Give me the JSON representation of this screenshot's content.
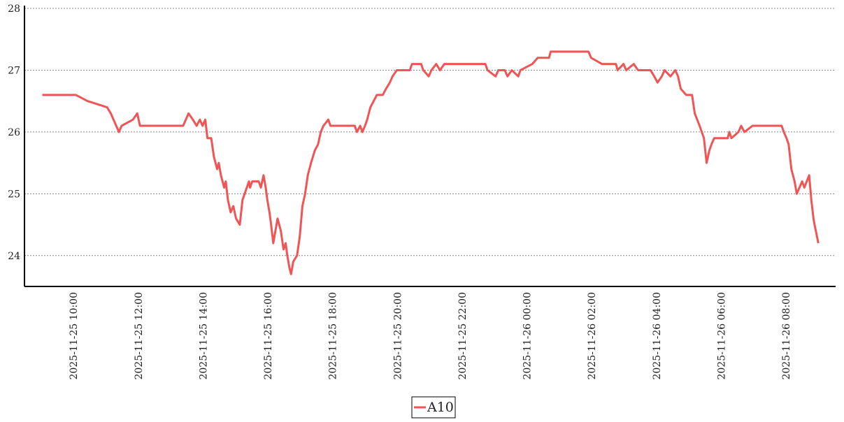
{
  "chart_data": {
    "type": "line",
    "x": [
      "2025-11-25 09:02",
      "2025-11-25 10:04",
      "2025-11-25 10:26",
      "2025-11-25 11:02",
      "2025-11-25 11:09",
      "2025-11-25 11:19",
      "2025-11-25 11:24",
      "2025-11-25 11:29",
      "2025-11-25 11:50",
      "2025-11-25 11:58",
      "2025-11-25 12:03",
      "2025-11-25 13:23",
      "2025-11-25 13:28",
      "2025-11-25 13:33",
      "2025-11-25 13:41",
      "2025-11-25 13:48",
      "2025-11-25 13:54",
      "2025-11-25 13:59",
      "2025-11-25 14:04",
      "2025-11-25 14:08",
      "2025-11-25 14:15",
      "2025-11-25 14:20",
      "2025-11-25 14:26",
      "2025-11-25 14:29",
      "2025-11-25 14:33",
      "2025-11-25 14:39",
      "2025-11-25 14:42",
      "2025-11-25 14:46",
      "2025-11-25 14:51",
      "2025-11-25 14:56",
      "2025-11-25 15:01",
      "2025-11-25 15:08",
      "2025-11-25 15:13",
      "2025-11-25 15:17",
      "2025-11-25 15:21",
      "2025-11-25 15:25",
      "2025-11-25 15:27",
      "2025-11-25 15:31",
      "2025-11-25 15:43",
      "2025-11-25 15:47",
      "2025-11-25 15:52",
      "2025-11-25 15:56",
      "2025-11-25 15:59",
      "2025-11-25 16:03",
      "2025-11-25 16:06",
      "2025-11-25 16:10",
      "2025-11-25 16:14",
      "2025-11-25 16:18",
      "2025-11-25 16:24",
      "2025-11-25 16:29",
      "2025-11-25 16:33",
      "2025-11-25 16:36",
      "2025-11-25 16:40",
      "2025-11-25 16:43",
      "2025-11-25 16:47",
      "2025-11-25 16:54",
      "2025-11-25 16:59",
      "2025-11-25 17:04",
      "2025-11-25 17:09",
      "2025-11-25 17:14",
      "2025-11-25 17:20",
      "2025-11-25 17:27",
      "2025-11-25 17:33",
      "2025-11-25 17:38",
      "2025-11-25 17:43",
      "2025-11-25 17:52",
      "2025-11-25 17:56",
      "2025-11-25 18:41",
      "2025-11-25 18:45",
      "2025-11-25 18:51",
      "2025-11-25 18:55",
      "2025-11-25 19:00",
      "2025-11-25 19:04",
      "2025-11-25 19:10",
      "2025-11-25 19:16",
      "2025-11-25 19:22",
      "2025-11-25 19:33",
      "2025-11-25 19:39",
      "2025-11-25 19:46",
      "2025-11-25 19:51",
      "2025-11-25 19:59",
      "2025-11-25 20:23",
      "2025-11-25 20:27",
      "2025-11-25 20:44",
      "2025-11-25 20:48",
      "2025-11-25 20:58",
      "2025-11-25 21:03",
      "2025-11-25 21:12",
      "2025-11-25 21:19",
      "2025-11-25 21:27",
      "2025-11-25 22:43",
      "2025-11-25 22:47",
      "2025-11-25 23:02",
      "2025-11-25 23:07",
      "2025-11-25 23:19",
      "2025-11-25 23:24",
      "2025-11-25 23:32",
      "2025-11-25 23:44",
      "2025-11-25 23:48",
      "2025-11-26 00:10",
      "2025-11-26 00:20",
      "2025-11-26 00:41",
      "2025-11-26 00:44",
      "2025-11-26 01:54",
      "2025-11-26 01:59",
      "2025-11-26 02:19",
      "2025-11-26 02:45",
      "2025-11-26 02:48",
      "2025-11-26 02:59",
      "2025-11-26 03:04",
      "2025-11-26 03:18",
      "2025-11-26 03:26",
      "2025-11-26 03:49",
      "2025-11-26 03:56",
      "2025-11-26 04:02",
      "2025-11-26 04:10",
      "2025-11-26 04:15",
      "2025-11-26 04:26",
      "2025-11-26 04:35",
      "2025-11-26 04:40",
      "2025-11-26 04:45",
      "2025-11-26 04:55",
      "2025-11-26 05:06",
      "2025-11-26 05:11",
      "2025-11-26 05:20",
      "2025-11-26 05:28",
      "2025-11-26 05:33",
      "2025-11-26 05:38",
      "2025-11-26 05:42",
      "2025-11-26 05:47",
      "2025-11-26 06:12",
      "2025-11-26 06:15",
      "2025-11-26 06:19",
      "2025-11-26 06:32",
      "2025-11-26 06:37",
      "2025-11-26 06:43",
      "2025-11-26 06:58",
      "2025-11-26 07:52",
      "2025-11-26 07:56",
      "2025-11-26 08:01",
      "2025-11-26 08:05",
      "2025-11-26 08:10",
      "2025-11-26 08:16",
      "2025-11-26 08:20",
      "2025-11-26 08:25",
      "2025-11-26 08:30",
      "2025-11-26 08:34",
      "2025-11-26 08:43",
      "2025-11-26 08:47",
      "2025-11-26 08:51",
      "2025-11-26 08:53",
      "2025-11-26 09:00"
    ],
    "series": [
      {
        "name": "A10",
        "color": "#f05454",
        "values": [
          26.6,
          26.6,
          26.5,
          26.4,
          26.3,
          26.1,
          26.0,
          26.1,
          26.2,
          26.3,
          26.1,
          26.1,
          26.2,
          26.3,
          26.2,
          26.1,
          26.2,
          26.1,
          26.2,
          25.9,
          25.9,
          25.6,
          25.4,
          25.5,
          25.3,
          25.1,
          25.2,
          24.9,
          24.7,
          24.8,
          24.6,
          24.5,
          24.9,
          25.0,
          25.1,
          25.2,
          25.1,
          25.2,
          25.2,
          25.1,
          25.3,
          25.1,
          24.9,
          24.7,
          24.5,
          24.2,
          24.4,
          24.6,
          24.4,
          24.1,
          24.2,
          24.0,
          23.8,
          23.7,
          23.9,
          24.0,
          24.3,
          24.8,
          25.0,
          25.3,
          25.5,
          25.7,
          25.8,
          26.0,
          26.1,
          26.2,
          26.1,
          26.1,
          26.0,
          26.1,
          26.0,
          26.1,
          26.2,
          26.4,
          26.5,
          26.6,
          26.6,
          26.7,
          26.8,
          26.9,
          27.0,
          27.0,
          27.1,
          27.1,
          27.0,
          26.9,
          27.0,
          27.1,
          27.0,
          27.1,
          27.1,
          27.0,
          26.9,
          27.0,
          27.0,
          26.9,
          27.0,
          26.9,
          27.0,
          27.1,
          27.2,
          27.2,
          27.3,
          27.3,
          27.2,
          27.1,
          27.1,
          27.0,
          27.1,
          27.0,
          27.1,
          27.0,
          27.0,
          26.9,
          26.8,
          26.9,
          27.0,
          26.9,
          27.0,
          26.9,
          26.7,
          26.6,
          26.6,
          26.3,
          26.1,
          25.9,
          25.5,
          25.7,
          25.8,
          25.9,
          25.9,
          26.0,
          25.9,
          26.0,
          26.1,
          26.0,
          26.1,
          26.1,
          26.0,
          25.9,
          25.8,
          25.4,
          25.2,
          25.0,
          25.1,
          25.2,
          25.1,
          25.3,
          24.9,
          24.6,
          24.5,
          24.2
        ]
      }
    ],
    "xlim": [
      "2025-11-25 08:29",
      "2025-11-26 09:32"
    ],
    "xticks": [
      "2025-11-25 10:00",
      "2025-11-25 12:00",
      "2025-11-25 14:00",
      "2025-11-25 16:00",
      "2025-11-25 18:00",
      "2025-11-25 20:00",
      "2025-11-25 22:00",
      "2025-11-26 00:00",
      "2025-11-26 02:00",
      "2025-11-26 04:00",
      "2025-11-26 06:00",
      "2025-11-26 08:00"
    ],
    "ylim": [
      23.5,
      28
    ],
    "yticks": [
      24,
      25,
      26,
      27,
      28
    ],
    "grid": true,
    "legend": "bottom"
  }
}
